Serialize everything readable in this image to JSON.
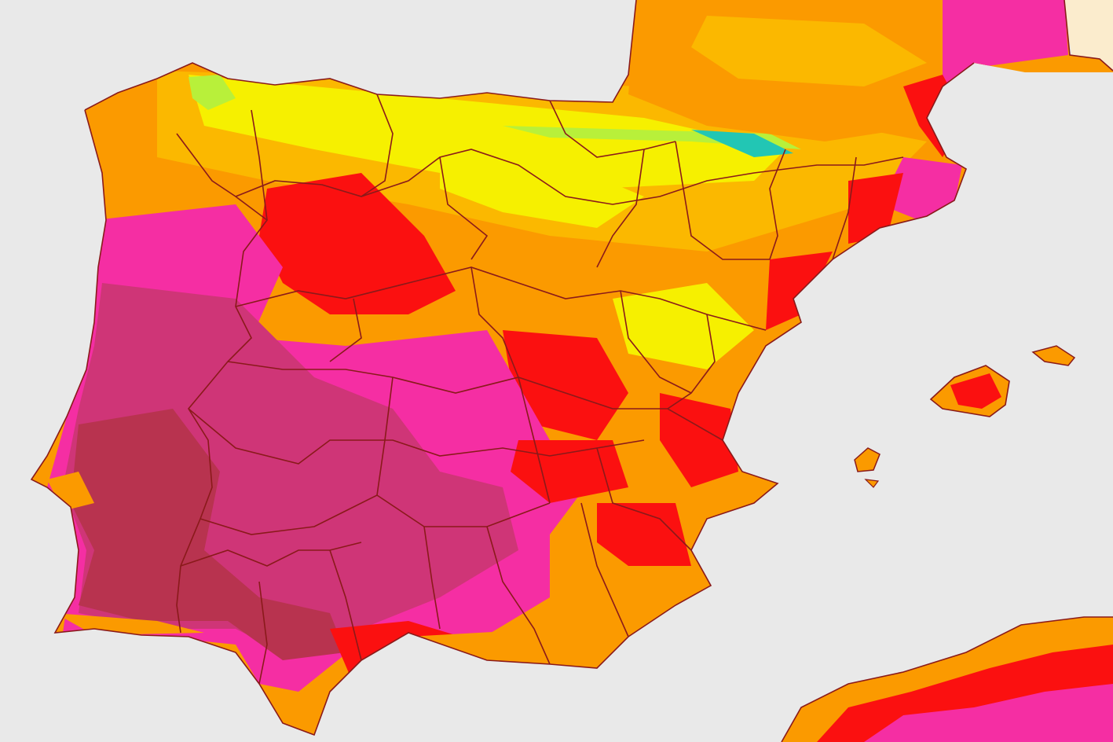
{
  "map": {
    "colors": {
      "sea": "#e9e9e9",
      "border": "#8a1a1a",
      "cool_cyan": "#22c6b4",
      "green": "#b8f03a",
      "yellow": "#f6f000",
      "light_orange": "#fbb800",
      "orange": "#fb9a00",
      "red": "#fb1010",
      "magenta": "#f52ea3",
      "dark_magenta": "#cf3577",
      "darkest": "#b8334f",
      "cream": "#fbeccd"
    }
  }
}
